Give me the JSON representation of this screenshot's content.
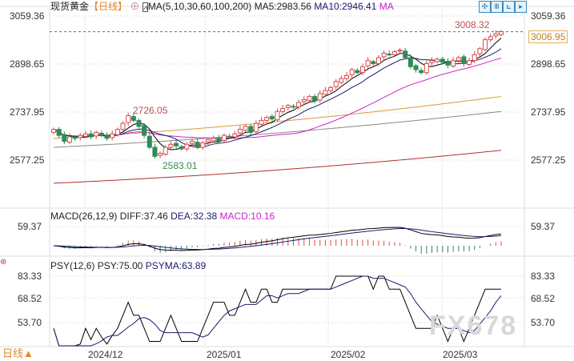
{
  "header": {
    "instrument": "现货黄金",
    "period": "【日线】",
    "ma_label": "MA(5,10,30,60,100,200)",
    "ma5": "MA5:2983.56",
    "ma10": "MA10:2946.41",
    "ma_more": "MA"
  },
  "macd_header": {
    "label": "MACD(26,12,9)",
    "diff": "DIFF:37.46",
    "dea": "DEA:32.38",
    "macd": "MACD:10.16"
  },
  "psy_header": {
    "label": "PSY(12,6)",
    "psy": "PSY:75.00",
    "psyma": "PSYMA:63.89"
  },
  "footer": {
    "period": "日线▲",
    "watermark": "FX678"
  },
  "colors": {
    "up": "#d94a4a",
    "down": "#2e8b57",
    "ma5": "#000000",
    "ma10": "#1a1a6e",
    "ma30": "#cc22cc",
    "ma60": "#d89a3a",
    "ma100": "#888888",
    "ma200": "#b03030"
  },
  "chart_data": {
    "type": "candlestick",
    "price_axis": {
      "ticks": [
        "3059.36",
        "2898.65",
        "2737.95",
        "2577.25"
      ],
      "range": [
        2530,
        3070
      ]
    },
    "last_price": "3006.95",
    "annotations": {
      "high": "3008.32",
      "peak": "2726.05",
      "low": "2583.01"
    },
    "x_ticks": [
      "2024/12",
      "2025/01",
      "2025/02",
      "2025/03"
    ],
    "closes": [
      2680,
      2660,
      2640,
      2655,
      2650,
      2660,
      2665,
      2655,
      2670,
      2660,
      2650,
      2665,
      2680,
      2700,
      2726,
      2710,
      2690,
      2660,
      2620,
      2590,
      2600,
      2620,
      2630,
      2625,
      2615,
      2630,
      2640,
      2620,
      2635,
      2645,
      2650,
      2640,
      2660,
      2655,
      2665,
      2680,
      2690,
      2670,
      2700,
      2710,
      2720,
      2715,
      2740,
      2750,
      2760,
      2755,
      2770,
      2780,
      2790,
      2775,
      2800,
      2810,
      2820,
      2840,
      2850,
      2860,
      2880,
      2870,
      2890,
      2910,
      2900,
      2920,
      2935,
      2930,
      2940,
      2945,
      2920,
      2890,
      2880,
      2870,
      2900,
      2910,
      2915,
      2905,
      2895,
      2910,
      2920,
      2900,
      2910,
      2930,
      2950,
      2980,
      2990,
      3000,
      3006.95
    ],
    "long_ma": {
      "ma60": [
        2650,
        2790
      ],
      "ma100": [
        2620,
        2740
      ],
      "ma200": [
        2500,
        2610
      ]
    },
    "macd_axis": {
      "ticks": [
        "59.37"
      ]
    },
    "psy_axis": {
      "ticks": [
        "83.33",
        "68.52",
        "53.70"
      ]
    }
  }
}
